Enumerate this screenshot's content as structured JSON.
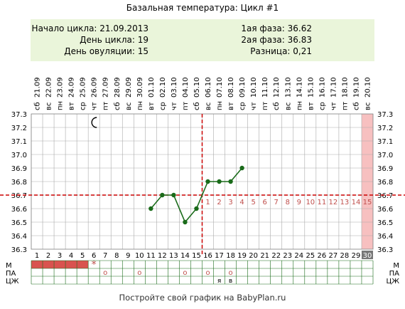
{
  "header": {
    "title": "Базальная температура: Цикл #1",
    "cycle_start": "Начало цикла: 21.09.2013",
    "cycle_day": "День цикла: 19",
    "ovulation_day": "День овуляции: 15",
    "phase1": "1ая фаза: 36.62",
    "phase2": "2ая фаза: 36.83",
    "difference": "Разница: 0,21"
  },
  "footer": {
    "text": "Постройте свой график на BabyPlan.ru"
  },
  "colors": {
    "line": "#1a6b1a",
    "grid": "#aaaaaa",
    "dashed": "#cc0000",
    "highlight": "#f7c0c0",
    "info_bg": "#eaf5da",
    "menses": "#d9534f"
  },
  "icons": {
    "moon_day": 6,
    "moon": "crescent-moon-icon"
  },
  "chart_data": {
    "type": "line",
    "ylim": [
      36.3,
      37.3
    ],
    "yticks": [
      "37.3",
      "37.2",
      "37.1",
      "37.0",
      "36.9",
      "36.8",
      "36.7",
      "36.6",
      "36.5",
      "36.4",
      "36.3"
    ],
    "days": [
      "1",
      "2",
      "3",
      "4",
      "5",
      "6",
      "7",
      "8",
      "9",
      "10",
      "11",
      "12",
      "13",
      "14",
      "15",
      "16",
      "17",
      "18",
      "19",
      "20",
      "21",
      "22",
      "23",
      "24",
      "25",
      "26",
      "27",
      "28",
      "29",
      "30"
    ],
    "dates": [
      "21.09",
      "22.09",
      "23.09",
      "24.09",
      "25.09",
      "26.09",
      "27.09",
      "28.09",
      "29.09",
      "30.09",
      "01.10",
      "02.10",
      "03.10",
      "04.10",
      "05.10",
      "06.10",
      "07.10",
      "08.10",
      "09.10",
      "10.10",
      "11.10",
      "12.10",
      "13.10",
      "14.10",
      "15.10",
      "16.10",
      "17.10",
      "18.10",
      "19.10",
      "20.10"
    ],
    "weekdays": [
      "сб",
      "вс",
      "пн",
      "вт",
      "ср",
      "чт",
      "пт",
      "сб",
      "вс",
      "пн",
      "вт",
      "ср",
      "чт",
      "пт",
      "сб",
      "вс",
      "пн",
      "вт",
      "ср",
      "чт",
      "пт",
      "сб",
      "вс",
      "пн",
      "вт",
      "ср",
      "чт",
      "пт",
      "сб",
      "вс"
    ],
    "x": [
      11,
      12,
      13,
      14,
      15,
      16,
      17,
      18,
      19
    ],
    "y": [
      36.6,
      36.7,
      36.7,
      36.5,
      36.6,
      36.8,
      36.8,
      36.8,
      36.9
    ],
    "coverline": 36.7,
    "ovulation_day": 15,
    "highlight_day": 30,
    "post_ovulation_labels": [
      "1",
      "2",
      "3",
      "4",
      "5",
      "6",
      "7",
      "8",
      "9",
      "10",
      "11",
      "12",
      "13",
      "14",
      "15"
    ],
    "rows": {
      "labels": [
        "М",
        "ПА",
        "ЦЖ"
      ],
      "menses_days": [
        1,
        2,
        3,
        4,
        5
      ],
      "star_day": 6,
      "pa_marks": [
        {
          "day": 7,
          "text": "о"
        },
        {
          "day": 10,
          "text": "о"
        },
        {
          "day": 14,
          "text": "о"
        },
        {
          "day": 16,
          "text": "о"
        },
        {
          "day": 18,
          "text": "о"
        }
      ],
      "cm_marks": [
        {
          "day": 17,
          "text": "я"
        },
        {
          "day": 18,
          "text": "в"
        }
      ]
    }
  }
}
